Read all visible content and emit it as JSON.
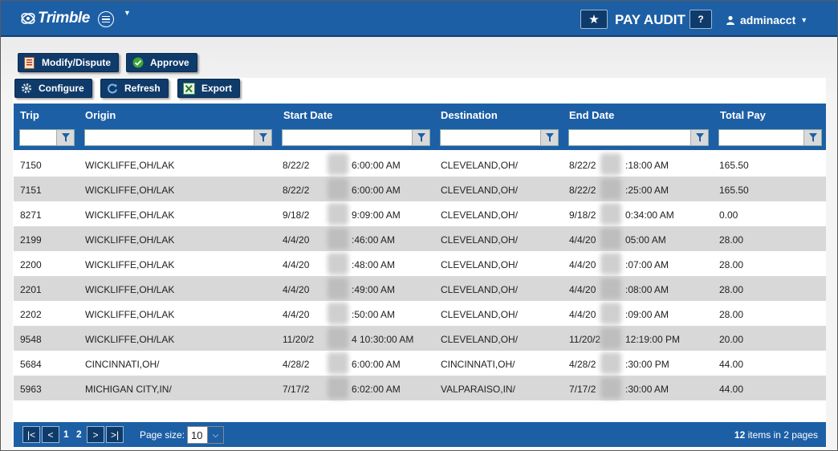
{
  "header": {
    "logo_text": "Trimble",
    "app_title": "PAY AUDIT",
    "help_label": "?",
    "user_name": "adminacct"
  },
  "toolbar": {
    "modify_label": "Modify/Dispute",
    "approve_label": "Approve",
    "configure_label": "Configure",
    "refresh_label": "Refresh",
    "export_label": "Export"
  },
  "grid": {
    "columns": [
      "Trip",
      "Origin",
      "Start Date",
      "Destination",
      "End Date",
      "Total Pay"
    ],
    "rows": [
      {
        "trip": "7150",
        "origin": "WICKLIFFE,OH/LAK",
        "start_a": "8/22/2",
        "start_b": "6:00:00 AM",
        "dest": "CLEVELAND,OH/",
        "end_a": "8/22/2",
        "end_b": ":18:00 AM",
        "pay": "165.50"
      },
      {
        "trip": "7151",
        "origin": "WICKLIFFE,OH/LAK",
        "start_a": "8/22/2",
        "start_b": "6:00:00 AM",
        "dest": "CLEVELAND,OH/",
        "end_a": "8/22/2",
        "end_b": ":25:00 AM",
        "pay": "165.50"
      },
      {
        "trip": "8271",
        "origin": "WICKLIFFE,OH/LAK",
        "start_a": "9/18/2",
        "start_b": "9:09:00 AM",
        "dest": "CLEVELAND,OH/",
        "end_a": "9/18/2",
        "end_b": "0:34:00 AM",
        "pay": "0.00"
      },
      {
        "trip": "2199",
        "origin": "WICKLIFFE,OH/LAK",
        "start_a": "4/4/20",
        "start_b": ":46:00 AM",
        "dest": "CLEVELAND,OH/",
        "end_a": "4/4/20",
        "end_b": "05:00 AM",
        "pay": "28.00"
      },
      {
        "trip": "2200",
        "origin": "WICKLIFFE,OH/LAK",
        "start_a": "4/4/20",
        "start_b": ":48:00 AM",
        "dest": "CLEVELAND,OH/",
        "end_a": "4/4/20",
        "end_b": ":07:00 AM",
        "pay": "28.00"
      },
      {
        "trip": "2201",
        "origin": "WICKLIFFE,OH/LAK",
        "start_a": "4/4/20",
        "start_b": ":49:00 AM",
        "dest": "CLEVELAND,OH/",
        "end_a": "4/4/20",
        "end_b": ":08:00 AM",
        "pay": "28.00"
      },
      {
        "trip": "2202",
        "origin": "WICKLIFFE,OH/LAK",
        "start_a": "4/4/20",
        "start_b": ":50:00 AM",
        "dest": "CLEVELAND,OH/",
        "end_a": "4/4/20",
        "end_b": ":09:00 AM",
        "pay": "28.00"
      },
      {
        "trip": "9548",
        "origin": "WICKLIFFE,OH/LAK",
        "start_a": "11/20/2",
        "start_b": "4 10:30:00 AM",
        "dest": "CLEVELAND,OH/",
        "end_a": "11/20/2",
        "end_b": "12:19:00 PM",
        "pay": "20.00"
      },
      {
        "trip": "5684",
        "origin": "CINCINNATI,OH/",
        "start_a": "4/28/2",
        "start_b": "6:00:00 AM",
        "dest": "CINCINNATI,OH/",
        "end_a": "4/28/2",
        "end_b": ":30:00 PM",
        "pay": "44.00"
      },
      {
        "trip": "5963",
        "origin": "MICHIGAN CITY,IN/",
        "start_a": "7/17/2",
        "start_b": "6:02:00 AM",
        "dest": "VALPARAISO,IN/",
        "end_a": "7/17/2",
        "end_b": ":30:00 AM",
        "pay": "44.00"
      }
    ]
  },
  "pager": {
    "first": "|<",
    "prev": "<",
    "pages": [
      "1",
      "2"
    ],
    "next": ">",
    "last": ">|",
    "page_size_label": "Page size:",
    "page_size_value": "10",
    "items_count": "12",
    "items_suffix": " items in 2 pages"
  },
  "colors": {
    "header_blue": "#1d5fa5",
    "button_navy": "#0f3b6b",
    "row_alt": "#d8d8d8"
  },
  "icons": [
    "trimble-logo-icon",
    "menu-icon",
    "star-icon",
    "user-icon",
    "document-icon",
    "check-icon",
    "gear-icon",
    "refresh-icon",
    "excel-icon",
    "filter-icon"
  ]
}
